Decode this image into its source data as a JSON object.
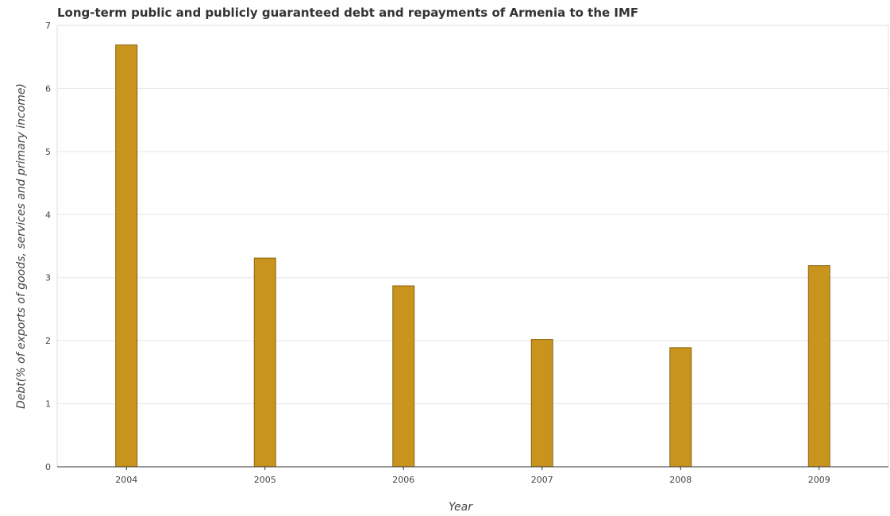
{
  "chart_data": {
    "type": "bar",
    "title": "Long-term public and publicly guaranteed debt and repayments of Armenia to the IMF",
    "xlabel": "Year",
    "ylabel": "Debt(% of exports of goods, services and primary income)",
    "categories": [
      "2004",
      "2005",
      "2006",
      "2007",
      "2008",
      "2009"
    ],
    "values": [
      6.69,
      3.31,
      2.87,
      2.02,
      1.89,
      3.19
    ],
    "ylim": [
      0,
      7
    ],
    "yticks": [
      "0",
      "1",
      "2",
      "3",
      "4",
      "5",
      "6",
      "7"
    ],
    "grid": true,
    "colors": {
      "bar": "#c8941e",
      "bar_edge": "#8a6410"
    }
  }
}
